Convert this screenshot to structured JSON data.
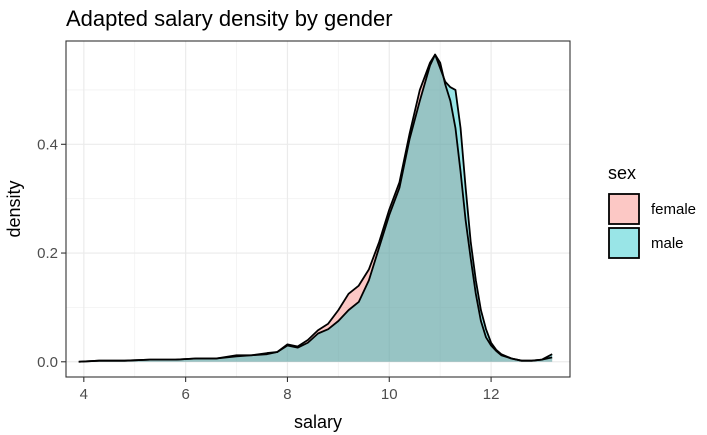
{
  "chart_data": {
    "type": "area",
    "title": "Adapted salary density by gender",
    "xlabel": "salary",
    "ylabel": "density",
    "xlim": [
      3.65,
      13.55
    ],
    "ylim": [
      -0.028,
      0.59
    ],
    "x_ticks": [
      4,
      6,
      8,
      10,
      12
    ],
    "y_ticks": [
      0.0,
      0.2,
      0.4
    ],
    "x_tick_labels": [
      "4",
      "6",
      "8",
      "10",
      "12"
    ],
    "y_tick_labels": [
      "0.0",
      "0.2",
      "0.4"
    ],
    "grid": true,
    "legend": {
      "title": "sex",
      "position": "right",
      "entries": [
        "female",
        "male"
      ]
    },
    "series": [
      {
        "name": "female",
        "color": "#F8766D",
        "x": [
          3.9,
          4.3,
          4.8,
          5.3,
          5.8,
          6.2,
          6.6,
          7.0,
          7.3,
          7.6,
          7.8,
          8.0,
          8.2,
          8.4,
          8.6,
          8.8,
          9.0,
          9.2,
          9.4,
          9.6,
          9.8,
          10.0,
          10.2,
          10.4,
          10.6,
          10.8,
          10.9,
          11.0,
          11.1,
          11.2,
          11.3,
          11.4,
          11.5,
          11.6,
          11.7,
          11.8,
          11.9,
          12.0,
          12.1,
          12.2,
          12.4,
          12.6,
          12.8,
          13.0,
          13.2
        ],
        "y": [
          0.0,
          0.002,
          0.002,
          0.004,
          0.004,
          0.006,
          0.006,
          0.012,
          0.012,
          0.016,
          0.018,
          0.032,
          0.028,
          0.04,
          0.058,
          0.07,
          0.095,
          0.125,
          0.14,
          0.17,
          0.22,
          0.28,
          0.33,
          0.42,
          0.5,
          0.55,
          0.565,
          0.55,
          0.51,
          0.48,
          0.43,
          0.35,
          0.26,
          0.19,
          0.125,
          0.075,
          0.045,
          0.03,
          0.02,
          0.012,
          0.006,
          0.002,
          0.002,
          0.004,
          0.008
        ]
      },
      {
        "name": "male",
        "color": "#00BFC4",
        "x": [
          3.9,
          4.3,
          4.8,
          5.3,
          5.8,
          6.2,
          6.6,
          7.0,
          7.3,
          7.6,
          7.8,
          8.0,
          8.2,
          8.4,
          8.6,
          8.8,
          9.0,
          9.2,
          9.4,
          9.6,
          9.8,
          10.0,
          10.2,
          10.4,
          10.6,
          10.8,
          10.9,
          11.0,
          11.1,
          11.2,
          11.3,
          11.4,
          11.5,
          11.6,
          11.7,
          11.8,
          11.9,
          12.0,
          12.1,
          12.2,
          12.4,
          12.6,
          12.8,
          13.0,
          13.2
        ],
        "y": [
          0.0,
          0.002,
          0.002,
          0.004,
          0.004,
          0.006,
          0.006,
          0.01,
          0.012,
          0.014,
          0.018,
          0.03,
          0.026,
          0.035,
          0.052,
          0.06,
          0.075,
          0.095,
          0.11,
          0.15,
          0.21,
          0.27,
          0.32,
          0.41,
          0.48,
          0.545,
          0.565,
          0.54,
          0.515,
          0.505,
          0.5,
          0.43,
          0.32,
          0.22,
          0.15,
          0.095,
          0.06,
          0.035,
          0.022,
          0.014,
          0.006,
          0.002,
          0.002,
          0.004,
          0.014
        ]
      }
    ]
  }
}
